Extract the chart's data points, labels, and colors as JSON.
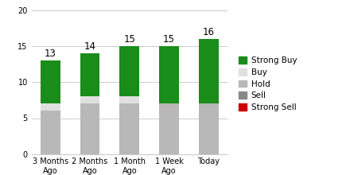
{
  "categories": [
    "3 Months\nAgo",
    "2 Months\nAgo",
    "1 Month\nAgo",
    "1 Week\nAgo",
    "Today"
  ],
  "totals": [
    13,
    14,
    15,
    15,
    16
  ],
  "segments": {
    "Strong Buy": [
      6,
      6,
      7,
      8,
      9
    ],
    "Buy": [
      1,
      1,
      1,
      0,
      0
    ],
    "Hold": [
      6,
      7,
      7,
      7,
      7
    ],
    "Sell": [
      0,
      0,
      0,
      0,
      0
    ],
    "Strong Sell": [
      0,
      0,
      0,
      0,
      0
    ]
  },
  "colors": {
    "Strong Buy": "#1a8c1a",
    "Buy": "#e0e0e0",
    "Hold": "#b8b8b8",
    "Sell": "#888888",
    "Strong Sell": "#cc0000"
  },
  "ylim": [
    0,
    20
  ],
  "yticks": [
    0,
    5,
    10,
    15,
    20
  ],
  "bg_color": "#ffffff",
  "grid_color": "#cccccc",
  "label_fontsize": 7.5,
  "tick_fontsize": 7,
  "total_fontsize": 8.5
}
